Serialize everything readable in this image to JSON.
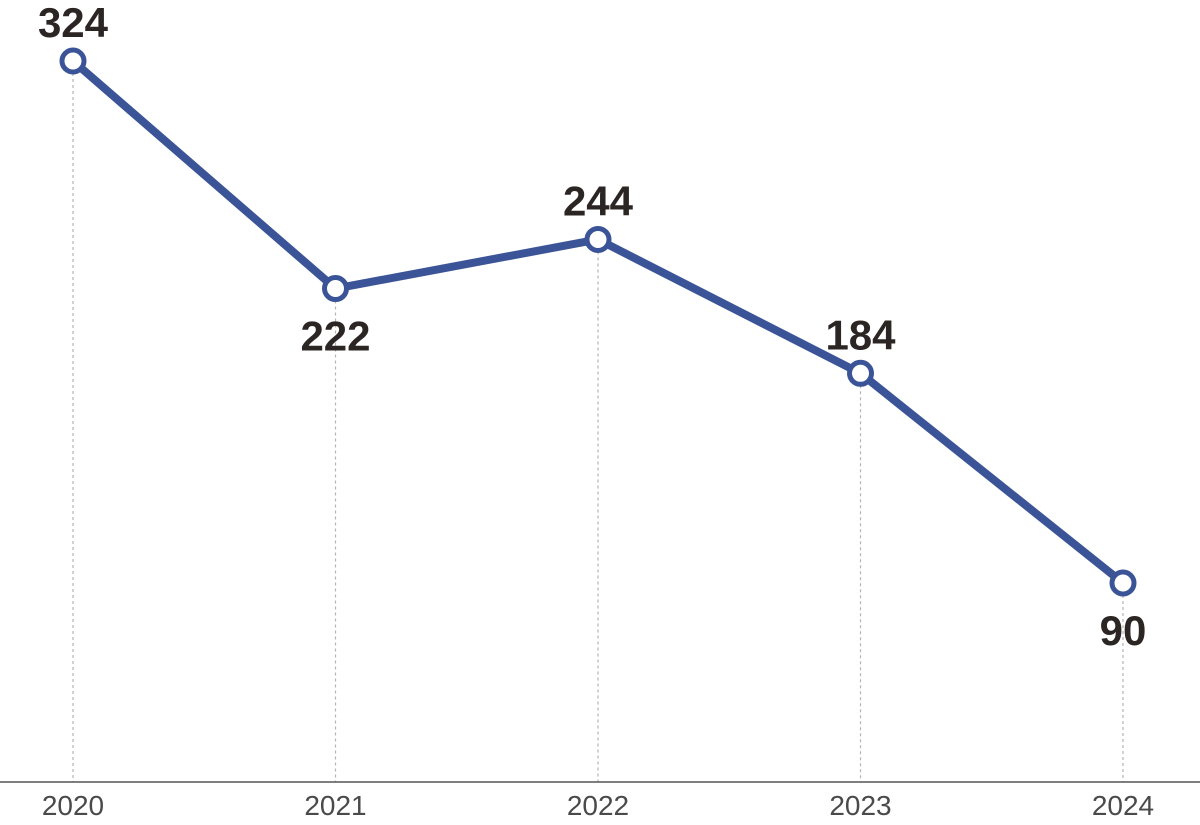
{
  "chart_data": {
    "type": "line",
    "categories": [
      "2020",
      "2021",
      "2022",
      "2023",
      "2024"
    ],
    "values": [
      324,
      222,
      244,
      184,
      90
    ],
    "data_labels": [
      "324",
      "222",
      "244",
      "184",
      "90"
    ],
    "label_positions": [
      "above",
      "below",
      "above",
      "above",
      "below"
    ],
    "ylim": [
      0,
      324
    ],
    "grid": "vertical dotted guides",
    "colors": {
      "series": "#3a5497",
      "labels": "#2b2523",
      "axis": "#555555"
    }
  }
}
